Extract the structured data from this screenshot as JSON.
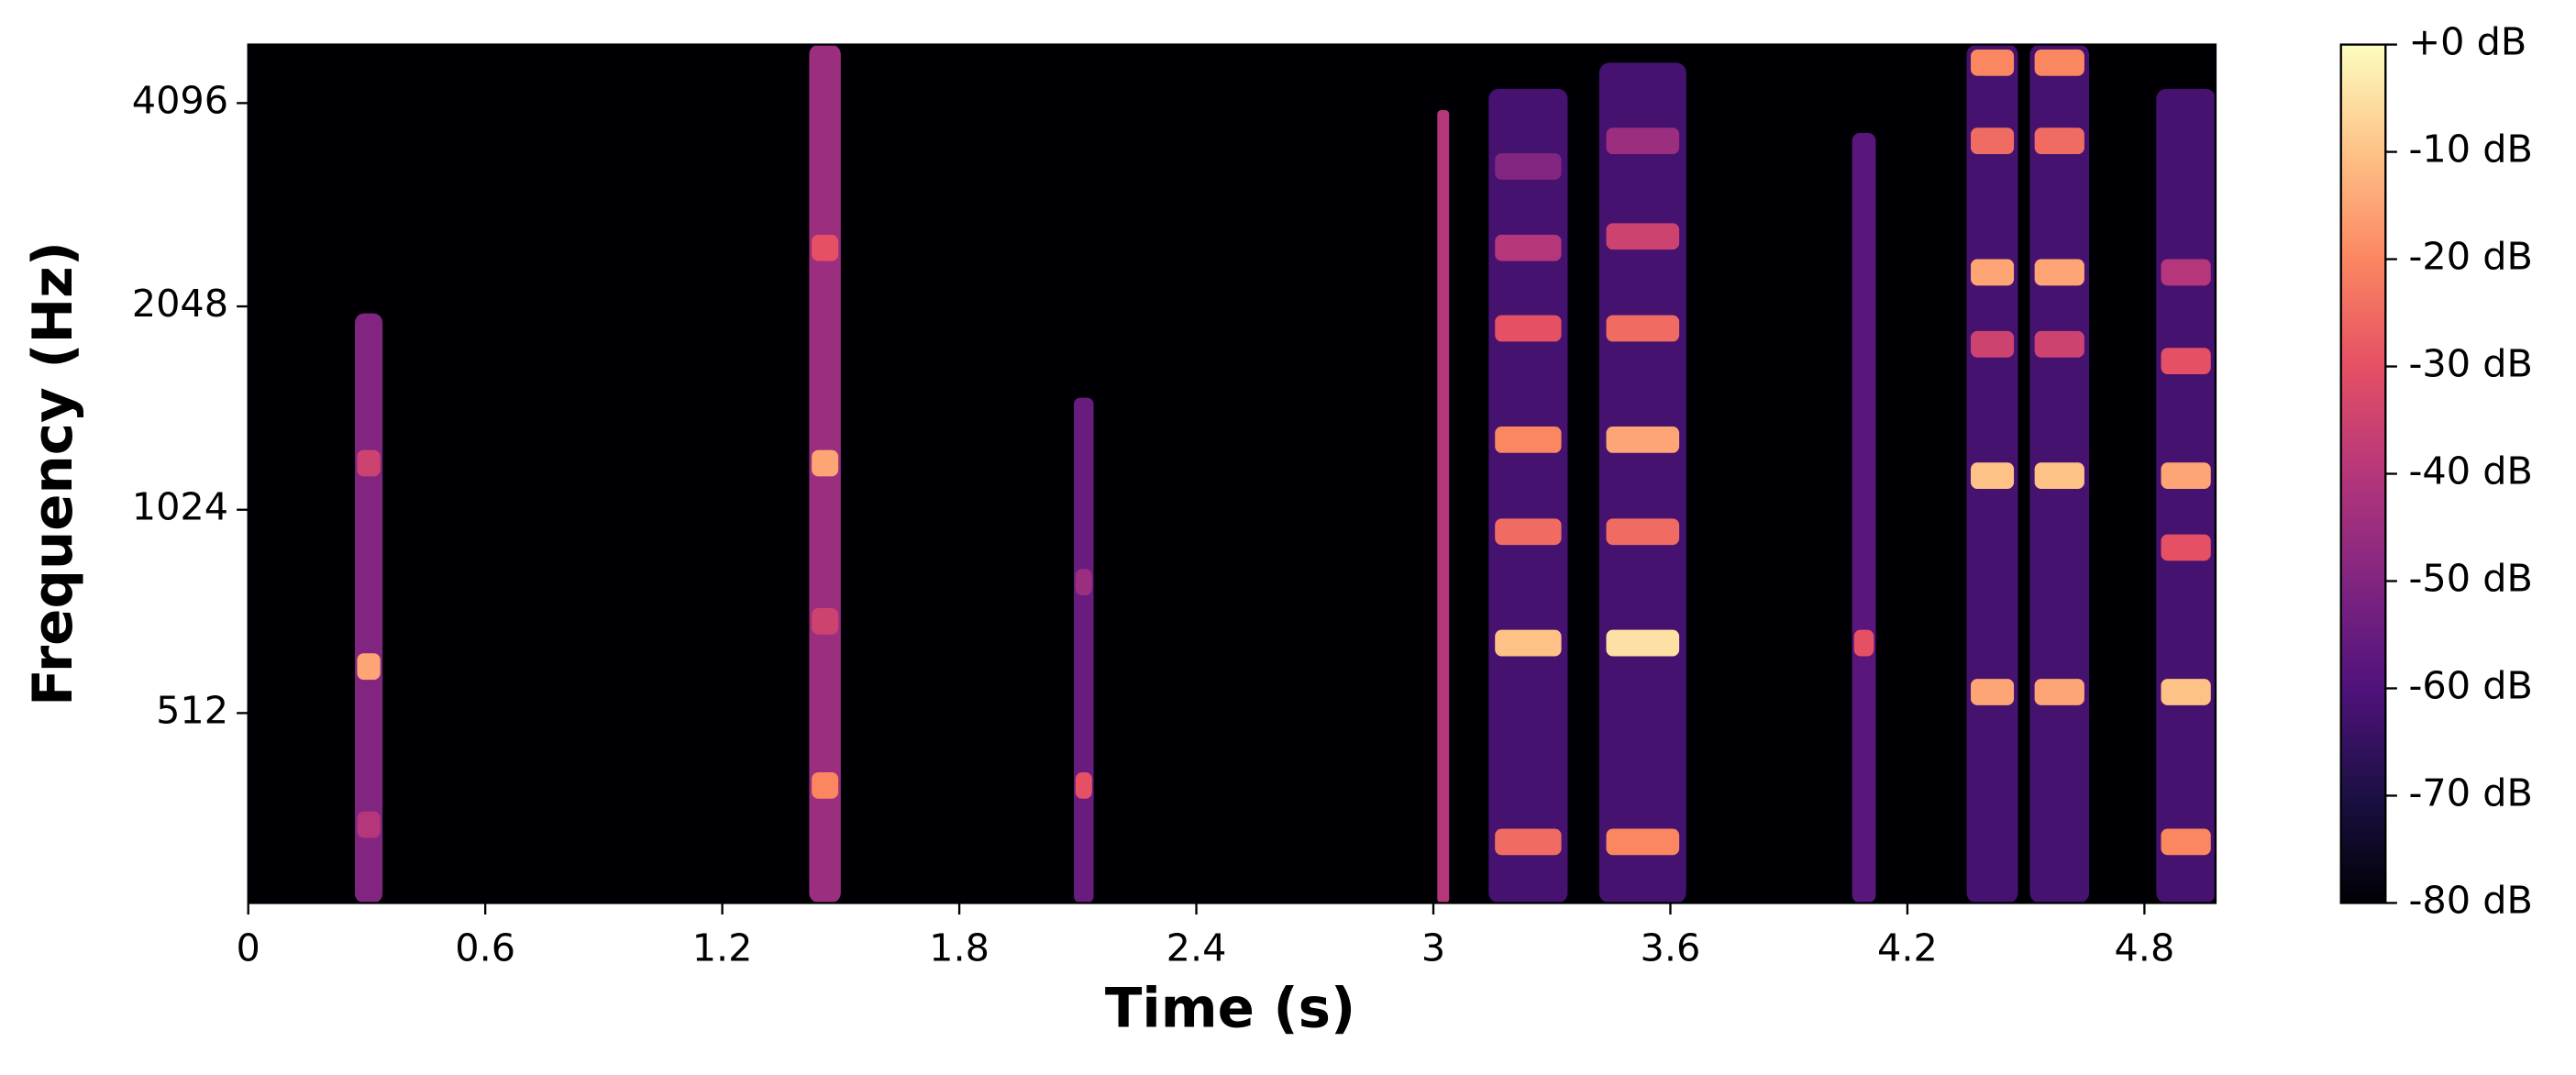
{
  "chart_data": {
    "type": "spectrogram",
    "xlabel": "Time (s)",
    "ylabel": "Frequency (Hz)",
    "yscale": "log2",
    "background": -80,
    "xlim": [
      0,
      4.98
    ],
    "xticks": [
      0,
      0.6,
      1.2,
      1.8,
      2.4,
      3,
      3.6,
      4.2,
      4.8
    ],
    "ylim": [
      268,
      5000
    ],
    "yticks": [
      512,
      1024,
      2048,
      4096
    ],
    "clim": [
      -80,
      0
    ],
    "cmap": "magma",
    "cticks": [
      {
        "value": 0,
        "label": "+0 dB"
      },
      {
        "value": -10,
        "label": "-10 dB"
      },
      {
        "value": -20,
        "label": "-20 dB"
      },
      {
        "value": -30,
        "label": "-30 dB"
      },
      {
        "value": -40,
        "label": "-40 dB"
      },
      {
        "value": -50,
        "label": "-50 dB"
      },
      {
        "value": -60,
        "label": "-60 dB"
      },
      {
        "value": -70,
        "label": "-70 dB"
      },
      {
        "value": -80,
        "label": "-80 dB"
      }
    ],
    "bursts": [
      {
        "t": [
          0.27,
          0.34
        ],
        "top": 2000,
        "level": -50,
        "bands": [
          {
            "f": 600,
            "db": -15
          },
          {
            "f": 1200,
            "db": -35
          },
          {
            "f": 350,
            "db": -40
          }
        ]
      },
      {
        "t": [
          1.42,
          1.5
        ],
        "top": 5000,
        "level": -45,
        "bands": [
          {
            "f": 1200,
            "db": -15
          },
          {
            "f": 400,
            "db": -20
          },
          {
            "f": 2500,
            "db": -30
          },
          {
            "f": 700,
            "db": -35
          }
        ]
      },
      {
        "t": [
          2.09,
          2.14
        ],
        "top": 1500,
        "level": -55,
        "bands": [
          {
            "f": 400,
            "db": -30
          },
          {
            "f": 800,
            "db": -45
          }
        ]
      },
      {
        "t": [
          3.01,
          3.04
        ],
        "top": 4000,
        "level": -40,
        "bands": []
      },
      {
        "t": [
          3.14,
          3.34
        ],
        "top": 4300,
        "level": -62,
        "bands": [
          {
            "f": 330,
            "db": -25
          },
          {
            "f": 650,
            "db": -10
          },
          {
            "f": 950,
            "db": -25
          },
          {
            "f": 1300,
            "db": -20
          },
          {
            "f": 1900,
            "db": -30
          },
          {
            "f": 2500,
            "db": -40
          },
          {
            "f": 3300,
            "db": -50
          }
        ]
      },
      {
        "t": [
          3.42,
          3.64
        ],
        "top": 4700,
        "level": -62,
        "bands": [
          {
            "f": 330,
            "db": -20
          },
          {
            "f": 650,
            "db": -5
          },
          {
            "f": 950,
            "db": -25
          },
          {
            "f": 1300,
            "db": -15
          },
          {
            "f": 1900,
            "db": -25
          },
          {
            "f": 2600,
            "db": -35
          },
          {
            "f": 3600,
            "db": -45
          }
        ]
      },
      {
        "t": [
          4.06,
          4.12
        ],
        "top": 3700,
        "level": -58,
        "bands": [
          {
            "f": 650,
            "db": -30
          }
        ]
      },
      {
        "t": [
          4.35,
          4.48
        ],
        "top": 5000,
        "level": -62,
        "bands": [
          {
            "f": 550,
            "db": -15
          },
          {
            "f": 1150,
            "db": -10
          },
          {
            "f": 1800,
            "db": -35
          },
          {
            "f": 2300,
            "db": -15
          },
          {
            "f": 3600,
            "db": -25
          },
          {
            "f": 4700,
            "db": -20
          }
        ]
      },
      {
        "t": [
          4.51,
          4.66
        ],
        "top": 5000,
        "level": -62,
        "bands": [
          {
            "f": 550,
            "db": -15
          },
          {
            "f": 1150,
            "db": -10
          },
          {
            "f": 1800,
            "db": -35
          },
          {
            "f": 2300,
            "db": -15
          },
          {
            "f": 3600,
            "db": -25
          },
          {
            "f": 4700,
            "db": -20
          }
        ]
      },
      {
        "t": [
          4.83,
          4.98
        ],
        "top": 4300,
        "level": -62,
        "bands": [
          {
            "f": 330,
            "db": -20
          },
          {
            "f": 550,
            "db": -10
          },
          {
            "f": 900,
            "db": -30
          },
          {
            "f": 1150,
            "db": -15
          },
          {
            "f": 1700,
            "db": -30
          },
          {
            "f": 2300,
            "db": -40
          }
        ]
      }
    ]
  }
}
